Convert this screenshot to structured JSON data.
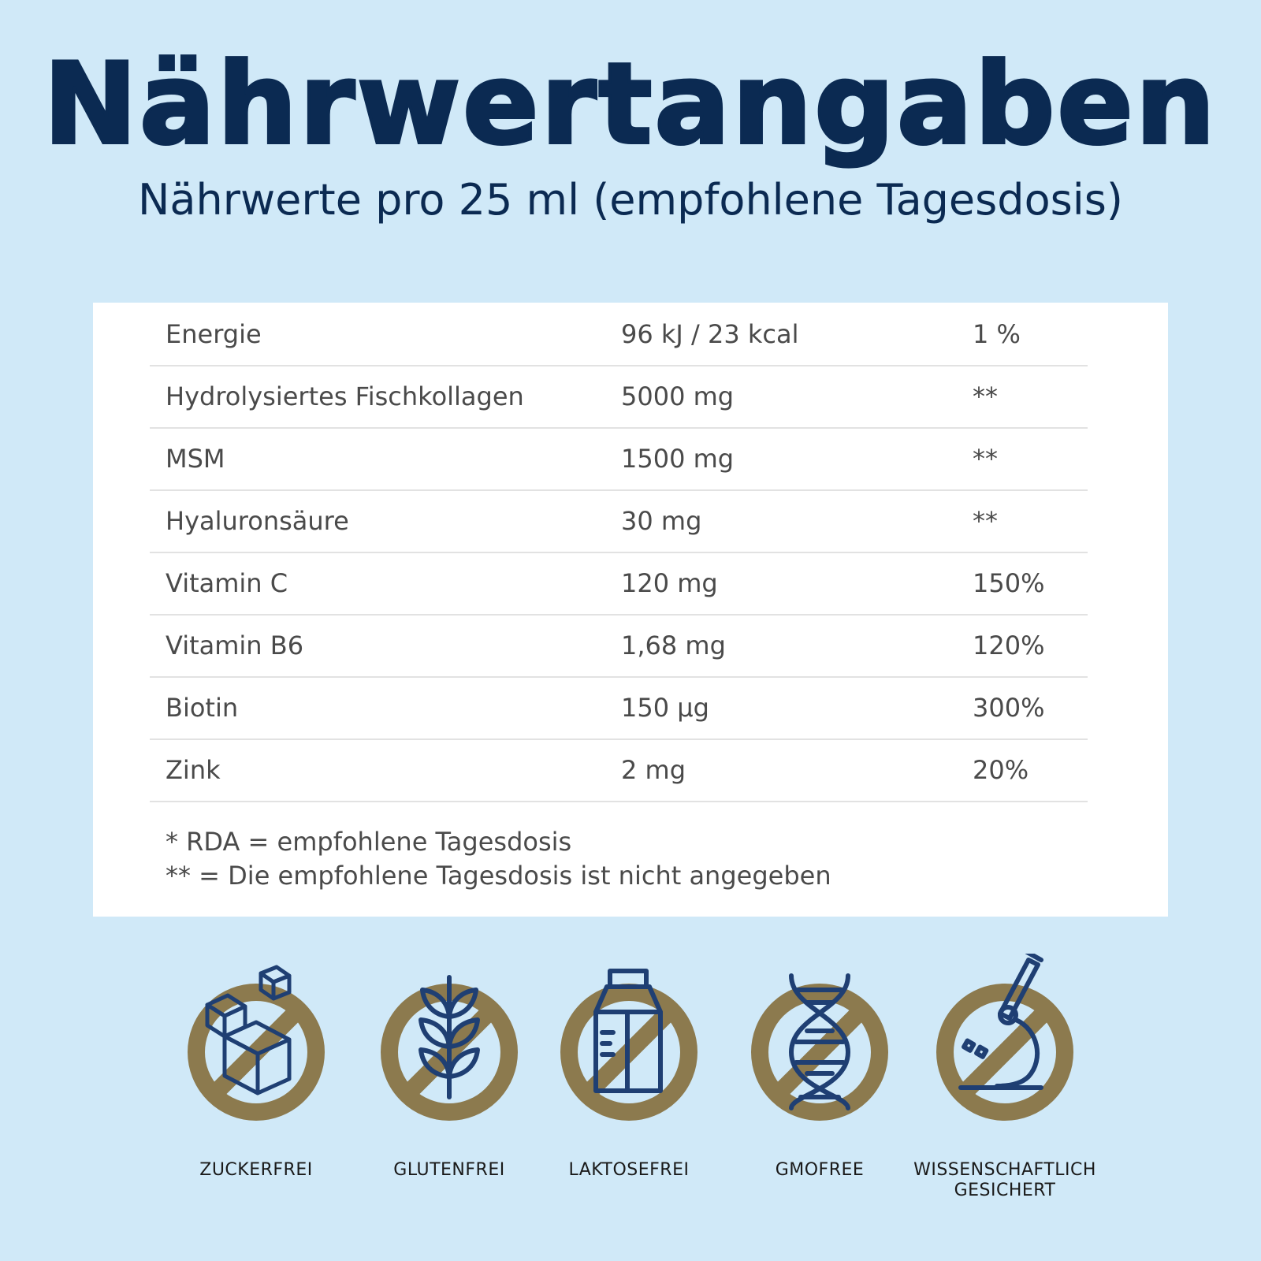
{
  "header": {
    "title": "Nährwertangaben",
    "subtitle": "Nährwerte pro 25 ml (empfohlene Tagesdosis)"
  },
  "table": {
    "rows": [
      {
        "name": "Energie",
        "amount": "96 kJ / 23 kcal",
        "rda": "1 %"
      },
      {
        "name": "Hydrolysiertes Fischkollagen",
        "amount": "5000 mg",
        "rda": "**"
      },
      {
        "name": "MSM",
        "amount": "1500 mg",
        "rda": "**"
      },
      {
        "name": "Hyaluronsäure",
        "amount": "30 mg",
        "rda": "**"
      },
      {
        "name": "Vitamin C",
        "amount": "120 mg",
        "rda": "150%"
      },
      {
        "name": "Vitamin B6",
        "amount": "1,68 mg",
        "rda": "120%"
      },
      {
        "name": "Biotin",
        "amount": "150 µg",
        "rda": "300%"
      },
      {
        "name": "Zink",
        "amount": "2 mg",
        "rda": "20%"
      }
    ],
    "footnotes": [
      "* RDA = empfohlene Tagesdosis",
      "** = Die empfohlene Tagesdosis ist nicht angegeben"
    ]
  },
  "badges": [
    {
      "label": "ZUCKERFREI",
      "icon": "sugar-cubes-icon"
    },
    {
      "label": "GLUTENFREI",
      "icon": "wheat-icon"
    },
    {
      "label": "LAKTOSEFREI",
      "icon": "milk-carton-icon"
    },
    {
      "label": "GMOFREE",
      "icon": "dna-icon"
    },
    {
      "label": "WISSENSCHAFTLICH GESICHERT",
      "icon": "microscope-icon"
    }
  ],
  "colors": {
    "background": "#d0e9f8",
    "title": "#0b2a52",
    "icon_ring": "#8c7a4e",
    "icon_line": "#1f3f73"
  }
}
